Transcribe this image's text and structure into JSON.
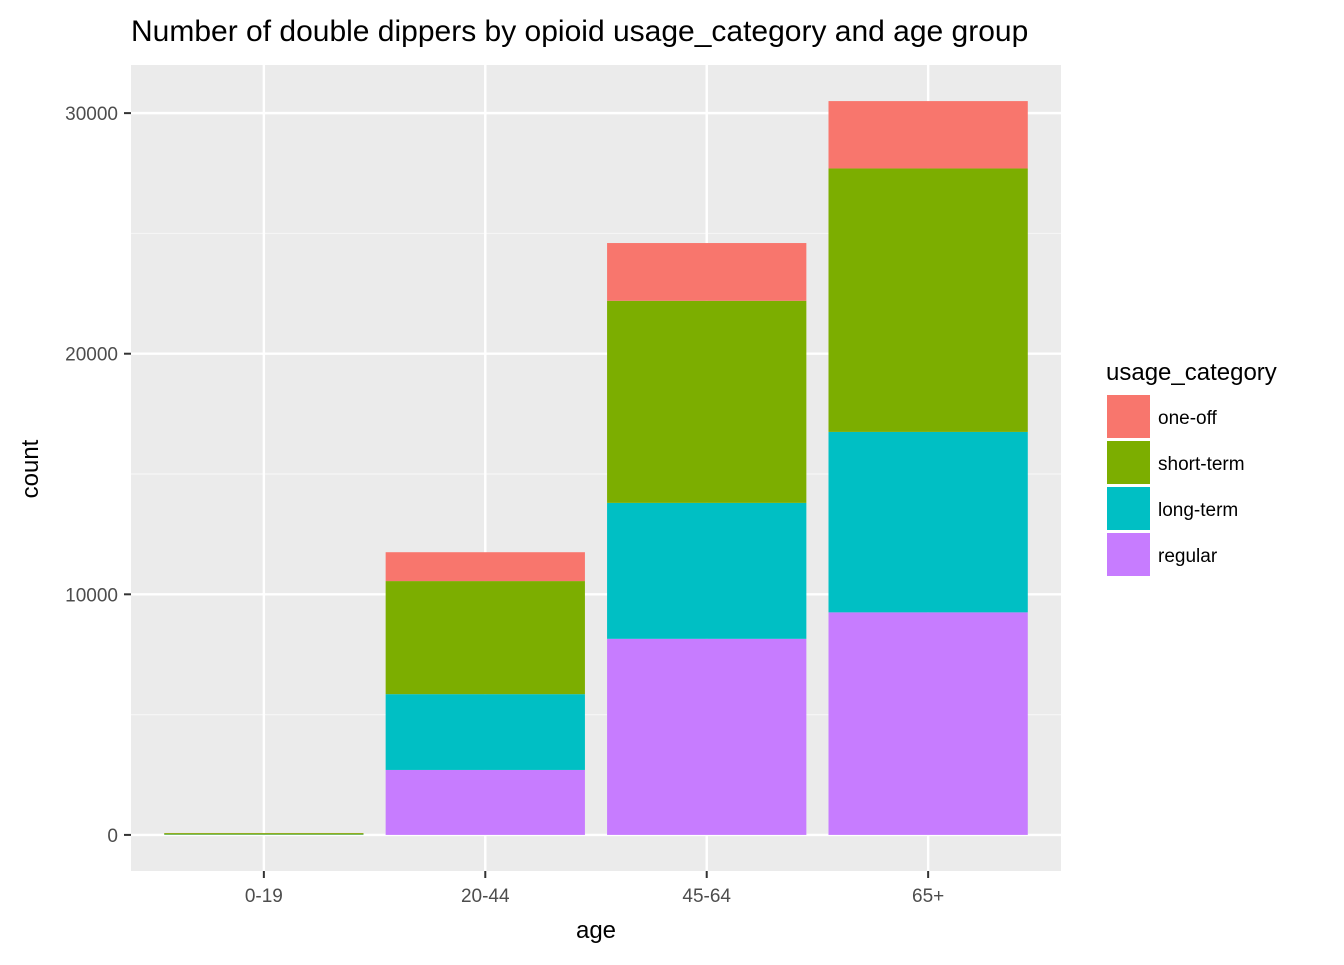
{
  "chart_data": {
    "type": "bar",
    "stacked": true,
    "title": "Number of double dippers by opioid usage_category and age group",
    "xlabel": "age",
    "ylabel": "count",
    "categories": [
      "0-19",
      "20-44",
      "45-64",
      "65+"
    ],
    "ylim": [
      -1500,
      32000
    ],
    "yticks": [
      0,
      10000,
      20000,
      30000
    ],
    "yticks_labels": [
      "0",
      "10000",
      "20000",
      "30000"
    ],
    "grid": true,
    "legend": {
      "title": "usage_category",
      "position": "right"
    },
    "series": [
      {
        "name": "regular",
        "color": "#C77CFF",
        "values": [
          5,
          2700,
          8150,
          9250
        ]
      },
      {
        "name": "long-term",
        "color": "#00BFC4",
        "values": [
          10,
          3150,
          5650,
          7500
        ]
      },
      {
        "name": "short-term",
        "color": "#7CAE00",
        "values": [
          60,
          4700,
          8400,
          10950
        ]
      },
      {
        "name": "one-off",
        "color": "#F8766D",
        "values": [
          5,
          1200,
          2400,
          2800
        ]
      }
    ],
    "legend_order": [
      "one-off",
      "short-term",
      "long-term",
      "regular"
    ],
    "colors": {
      "panel_background": "#EBEBEB",
      "grid_major": "#FFFFFF",
      "grid_minor": "#F5F5F5",
      "axis_text": "#4D4D4D",
      "title_text": "#000000"
    }
  }
}
